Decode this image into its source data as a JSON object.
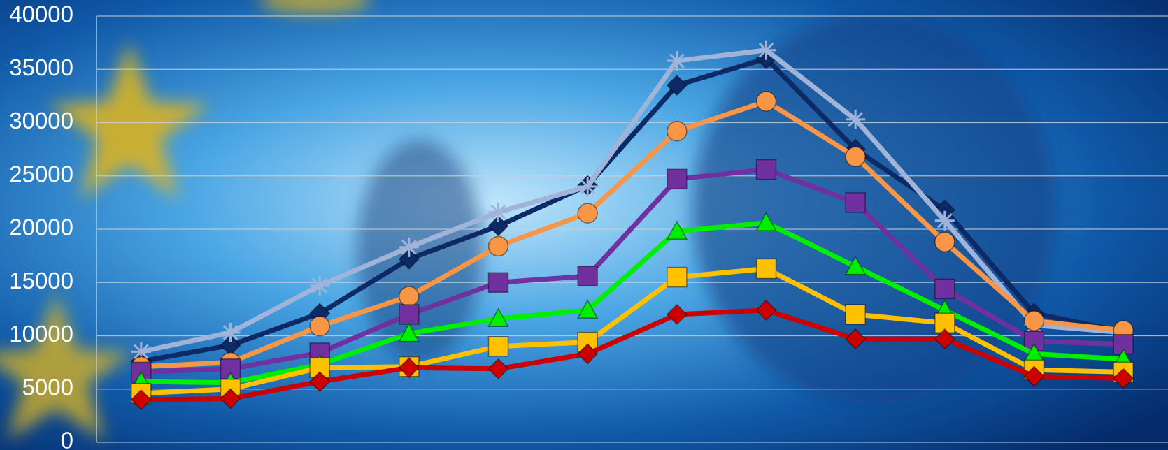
{
  "chart_data": {
    "type": "line",
    "categories": [
      null,
      null,
      null,
      null,
      null,
      null,
      null,
      null,
      null,
      null,
      null,
      null
    ],
    "series": [
      {
        "color": "#0d2a66",
        "marker": "diamond",
        "values": [
          7600,
          9100,
          12100,
          17200,
          20300,
          24100,
          33500,
          36000,
          27500,
          21800,
          12100,
          10400
        ]
      },
      {
        "color": "#9fb4d8",
        "marker": "star",
        "values": [
          8500,
          10300,
          14700,
          18300,
          21600,
          24000,
          35800,
          36800,
          30300,
          20800,
          11000,
          10300
        ]
      },
      {
        "color": "#f79646",
        "marker": "circle",
        "values": [
          7100,
          7500,
          10900,
          13700,
          18400,
          21500,
          29200,
          32000,
          26800,
          18800,
          11400,
          10500
        ]
      },
      {
        "color": "#7030a0",
        "marker": "square",
        "values": [
          6600,
          6900,
          8400,
          12000,
          15000,
          15600,
          24700,
          25600,
          22500,
          14400,
          9500,
          9200
        ]
      },
      {
        "color": "#00ee00",
        "marker": "triangle",
        "values": [
          5700,
          5600,
          7300,
          10200,
          11600,
          12400,
          19800,
          20600,
          16500,
          12400,
          8300,
          7800
        ]
      },
      {
        "color": "#ffc000",
        "marker": "square",
        "values": [
          4600,
          5000,
          7000,
          7100,
          9000,
          9400,
          15500,
          16300,
          12000,
          11200,
          6800,
          6600
        ]
      },
      {
        "color": "#cc0000",
        "marker": "diamond",
        "values": [
          4000,
          4100,
          5700,
          7000,
          6900,
          8300,
          12000,
          12400,
          9700,
          9700,
          6200,
          6000
        ]
      }
    ],
    "ylim": [
      0,
      40000
    ],
    "yticks": [
      0,
      5000,
      10000,
      15000,
      20000,
      25000,
      30000,
      35000,
      40000
    ],
    "grid": true
  }
}
